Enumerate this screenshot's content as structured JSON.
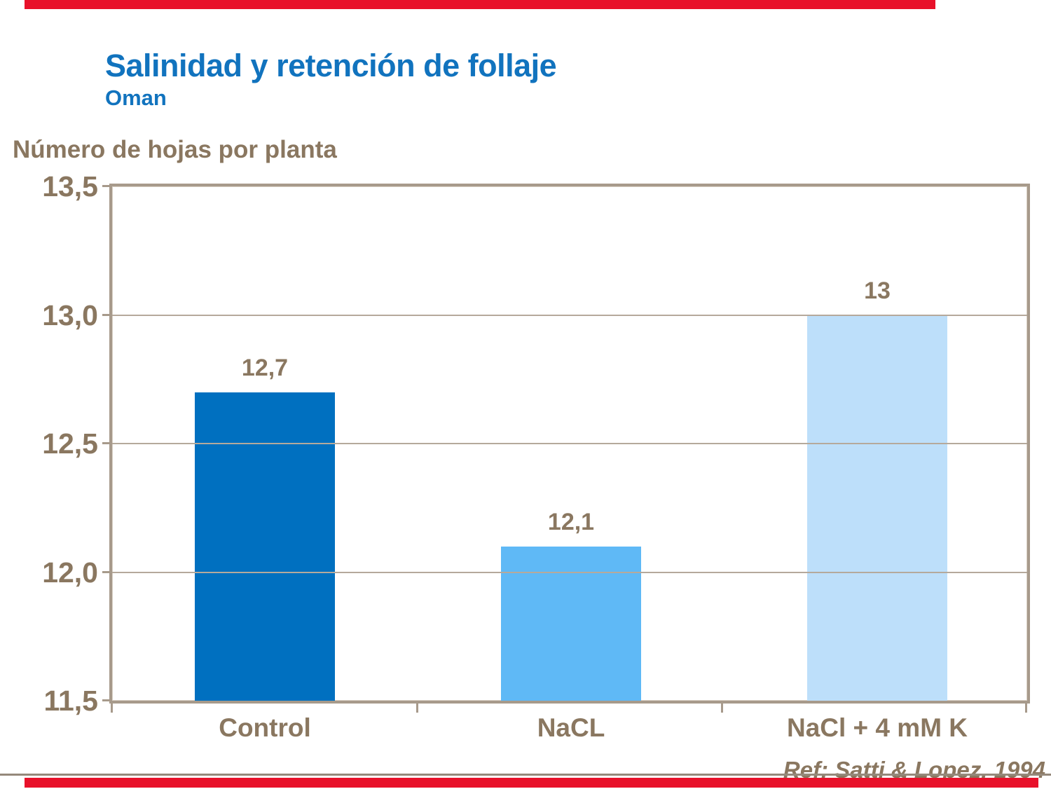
{
  "slide": {
    "title": "Salinidad y retención de follaje",
    "subtitle": "Oman",
    "reference": "Ref: Satti & Lopez, 1994"
  },
  "colors": {
    "accent_red": "#e8112a",
    "title_blue": "#1173be",
    "text_brown": "#8a7760",
    "frame_taupe": "#a79a8b",
    "gridline": "#b5a99b",
    "bar_control": "#0070c0",
    "bar_nacl": "#5fb9f6",
    "bar_nacl_k": "#bddffa"
  },
  "chart_data": {
    "type": "bar",
    "title": "Salinidad y retención de follaje",
    "subtitle": "Oman",
    "ylabel": "Número de hojas por planta",
    "xlabel": "",
    "categories": [
      "Control",
      "NaCL",
      "NaCl + 4 mM K"
    ],
    "values": [
      12.7,
      12.1,
      13
    ],
    "value_labels": [
      "12,7",
      "12,1",
      "13"
    ],
    "bar_colors": [
      "#0070c0",
      "#5fb9f6",
      "#bddffa"
    ],
    "ylim": [
      11.5,
      13.5
    ],
    "ytick_values": [
      13.5,
      13.0,
      12.5,
      12.0,
      11.5
    ],
    "ytick_labels": [
      "13,5",
      "13,0",
      "12,5",
      "12,0",
      "11,5"
    ],
    "grid": true,
    "legend": false,
    "reference": "Ref: Satti & Lopez, 1994"
  }
}
